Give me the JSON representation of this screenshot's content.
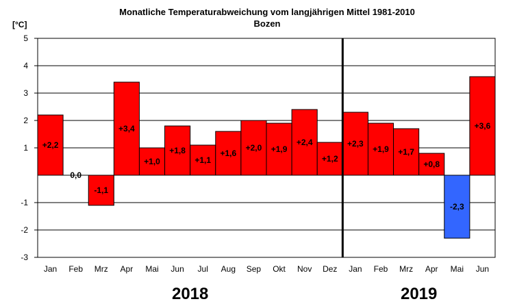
{
  "chart_data": {
    "type": "bar",
    "title": "Monatliche Temperaturabweichung vom langjährigen Mittel 1981-2010",
    "subtitle": "Bozen",
    "ylabel": "[°C]",
    "ylim": [
      -3,
      5
    ],
    "yticks": [
      5,
      4,
      3,
      2,
      1,
      -1,
      -2,
      -3
    ],
    "grid": true,
    "categories": [
      "Jan",
      "Feb",
      "Mrz",
      "Apr",
      "Mai",
      "Jun",
      "Jul",
      "Aug",
      "Sep",
      "Okt",
      "Nov",
      "Dez",
      "Jan",
      "Feb",
      "Mrz",
      "Apr",
      "Mai",
      "Jun"
    ],
    "values": [
      2.2,
      0.0,
      -1.1,
      3.4,
      1.0,
      1.8,
      1.1,
      1.6,
      2.0,
      1.9,
      2.4,
      1.2,
      2.3,
      1.9,
      1.7,
      0.8,
      -2.3,
      3.6
    ],
    "data_labels": [
      "+2,2",
      "0,0",
      "-1,1",
      "+3,4",
      "+1,0",
      "+1,8",
      "+1,1",
      "+1,6",
      "+2,0",
      "+1,9",
      "+2,4",
      "+1,2",
      "+2,3",
      "+1,9",
      "+1,7",
      "+0,8",
      "-2,3",
      "+3,6"
    ],
    "bar_colors": [
      "#ff0000",
      "#ff0000",
      "#ff0000",
      "#ff0000",
      "#ff0000",
      "#ff0000",
      "#ff0000",
      "#ff0000",
      "#ff0000",
      "#ff0000",
      "#ff0000",
      "#ff0000",
      "#ff0000",
      "#ff0000",
      "#ff0000",
      "#ff0000",
      "#3366ff",
      "#ff0000"
    ],
    "years": [
      {
        "label": "2018",
        "start_index": 0,
        "count": 12
      },
      {
        "label": "2019",
        "start_index": 12,
        "count": 6
      }
    ],
    "year_separator_after_index": 11
  }
}
